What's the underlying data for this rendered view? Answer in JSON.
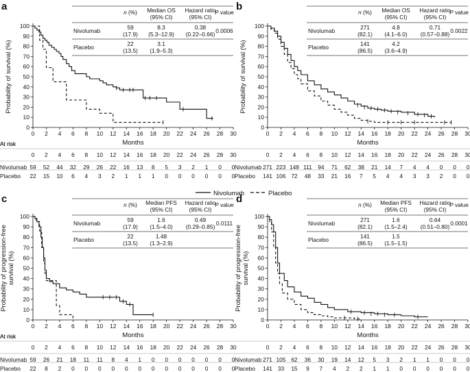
{
  "legend": {
    "nivolumab": "Nivolumab",
    "placebo": "Placebo",
    "position": "center"
  },
  "axis_labels": {
    "x": "Months",
    "y_os": "Probability of survival (%)",
    "y_pfs_line1": "Probability of progression-free",
    "y_pfs_line2": "survival (%)"
  },
  "risk_table_label": "At risk",
  "table_headers": {
    "n": "n (%)",
    "median_os": [
      "Median OS",
      "(95% CI)"
    ],
    "median_pfs": [
      "Median PFS",
      "(95% CI)"
    ],
    "hr": [
      "Hazard ratio",
      "(95% CI)"
    ],
    "p": "P value"
  },
  "colors": {
    "line": "#111111",
    "rule": "#444444"
  },
  "chart_data": [
    {
      "panel": "a",
      "type": "line",
      "step": true,
      "xlim": [
        0,
        30
      ],
      "ylim": [
        0,
        100
      ],
      "xticks": [
        0,
        2,
        4,
        6,
        8,
        10,
        12,
        14,
        16,
        18,
        20,
        22,
        24,
        26,
        28,
        30
      ],
      "yticks": [
        0,
        10,
        20,
        30,
        40,
        50,
        60,
        70,
        80,
        90,
        100
      ],
      "grid": false,
      "metric": "os",
      "series": [
        {
          "name": "Nivolumab",
          "style": "solid",
          "x": [
            0,
            0.3,
            0.6,
            0.9,
            1.2,
            1.5,
            1.8,
            2.1,
            2.4,
            2.8,
            3.2,
            3.5,
            3.9,
            4.2,
            4.5,
            5.0,
            5.4,
            5.8,
            6.3,
            7.0,
            8.0,
            8.5,
            9.0,
            10.0,
            10.5,
            11.0,
            12.0,
            12.5,
            13.0,
            16.0,
            16.5,
            18.0,
            20.0,
            22.0,
            26.0,
            27.0
          ],
          "y": [
            100,
            98,
            96,
            94,
            91,
            88,
            86,
            84,
            81,
            79,
            77,
            75,
            73,
            70,
            67,
            63,
            60,
            56,
            53,
            53,
            50,
            48,
            48,
            46,
            44,
            42,
            40,
            39,
            37,
            37,
            29,
            29,
            25,
            18,
            9,
            9
          ],
          "censor": [
            [
              12.5,
              39
            ],
            [
              13.5,
              37
            ],
            [
              14.5,
              37
            ],
            [
              15,
              37
            ],
            [
              16.8,
              29
            ],
            [
              17.5,
              29
            ],
            [
              18.5,
              29
            ],
            [
              22.5,
              18
            ],
            [
              26.8,
              9
            ]
          ]
        },
        {
          "name": "Placebo",
          "style": "dashed",
          "x": [
            0,
            1.0,
            1.5,
            2.0,
            3.0,
            4.0,
            5.0,
            6.5,
            8.0,
            10.0,
            12.0,
            19.5
          ],
          "y": [
            100,
            86,
            77,
            59,
            45,
            45,
            27,
            27,
            18,
            14,
            5,
            5
          ],
          "censor": [
            [
              19.5,
              5
            ]
          ]
        }
      ],
      "summary_table": [
        {
          "arm": "Nivolumab",
          "n": "59",
          "pct": "(17.9)",
          "median": "8.3",
          "median_ci": "(5.3–12.9)",
          "hr": "0.38",
          "hr_ci": "(0.22–0.66)",
          "p": "0.0006"
        },
        {
          "arm": "Placebo",
          "n": "22",
          "pct": "(13.5)",
          "median": "3.1",
          "median_ci": "(1.9–5.3)",
          "hr": "",
          "hr_ci": "",
          "p": ""
        }
      ],
      "at_risk": {
        "times": [
          0,
          2,
          4,
          6,
          8,
          10,
          12,
          14,
          16,
          18,
          20,
          22,
          24,
          26,
          28,
          30
        ],
        "Nivolumab": [
          59,
          52,
          44,
          32,
          29,
          26,
          22,
          16,
          13,
          8,
          5,
          3,
          2,
          1,
          0,
          0
        ],
        "Placebo": [
          22,
          15,
          10,
          6,
          4,
          3,
          2,
          1,
          1,
          1,
          0,
          0,
          0,
          0,
          0,
          0
        ]
      }
    },
    {
      "panel": "b",
      "type": "line",
      "step": true,
      "xlim": [
        0,
        30
      ],
      "ylim": [
        0,
        100
      ],
      "xticks": [
        0,
        2,
        4,
        6,
        8,
        10,
        12,
        14,
        16,
        18,
        20,
        22,
        24,
        26,
        28,
        30
      ],
      "yticks": [
        0,
        10,
        20,
        30,
        40,
        50,
        60,
        70,
        80,
        90,
        100
      ],
      "grid": false,
      "metric": "os",
      "series": [
        {
          "name": "Nivolumab",
          "style": "solid",
          "x": [
            0,
            0.5,
            1.0,
            1.5,
            2.0,
            2.5,
            3.0,
            3.5,
            4.0,
            4.5,
            5.0,
            6.0,
            7.0,
            8.0,
            9.0,
            10.0,
            11.0,
            12.0,
            13.0,
            14.0,
            15.0,
            16.0,
            17.0,
            18.0,
            20.0,
            22.0,
            24.0,
            25.0
          ],
          "y": [
            100,
            98,
            95,
            90,
            84,
            78,
            72,
            66,
            60,
            56,
            52,
            46,
            42,
            38,
            35,
            32,
            29,
            26,
            23,
            21,
            19,
            18,
            17,
            16,
            15,
            13,
            11,
            10
          ],
          "censor": [
            [
              13.5,
              22
            ],
            [
              14.5,
              20
            ],
            [
              15.5,
              19
            ],
            [
              16.5,
              18
            ],
            [
              17.5,
              17
            ],
            [
              18.5,
              16
            ],
            [
              19.5,
              15
            ],
            [
              21,
              14
            ],
            [
              22.5,
              13
            ],
            [
              23.5,
              12
            ],
            [
              24.5,
              11
            ]
          ]
        },
        {
          "name": "Placebo",
          "style": "dashed",
          "x": [
            0,
            0.5,
            1.0,
            1.5,
            2.0,
            2.5,
            3.0,
            3.5,
            4.0,
            4.5,
            5.0,
            6.0,
            7.0,
            8.0,
            9.0,
            10.0,
            11.0,
            12.0,
            13.0,
            14.0,
            15.0,
            16.0,
            17.0,
            18.0,
            27.5
          ],
          "y": [
            100,
            97,
            93,
            87,
            80,
            72,
            64,
            58,
            52,
            48,
            43,
            36,
            31,
            26,
            22,
            18,
            15,
            12,
            9,
            7,
            6,
            5,
            5,
            5,
            5
          ],
          "censor": [
            [
              15,
              6
            ],
            [
              18,
              5
            ],
            [
              20,
              5
            ],
            [
              22,
              5
            ],
            [
              26.5,
              5
            ],
            [
              27.5,
              5
            ]
          ]
        }
      ],
      "summary_table": [
        {
          "arm": "Nivolumab",
          "n": "271",
          "pct": "(82.1)",
          "median": "4.8",
          "median_ci": "(4.1–6.0)",
          "hr": "0.71",
          "hr_ci": "(0.57–0.88)",
          "p": "0.0022"
        },
        {
          "arm": "Placebo",
          "n": "141",
          "pct": "(86.5)",
          "median": "4.2",
          "median_ci": "(3.6–4.9)",
          "hr": "",
          "hr_ci": "",
          "p": ""
        }
      ],
      "at_risk": {
        "times": [
          0,
          2,
          4,
          6,
          8,
          10,
          12,
          14,
          16,
          18,
          20,
          22,
          24,
          26,
          28,
          30
        ],
        "Nivolumab": [
          271,
          223,
          148,
          111,
          94,
          71,
          62,
          38,
          21,
          14,
          7,
          4,
          4,
          0,
          0,
          0
        ],
        "Placebo": [
          141,
          106,
          72,
          48,
          33,
          21,
          16,
          7,
          5,
          4,
          4,
          3,
          3,
          2,
          0,
          0
        ]
      }
    },
    {
      "panel": "c",
      "type": "line",
      "step": true,
      "xlim": [
        0,
        30
      ],
      "ylim": [
        0,
        100
      ],
      "xticks": [
        0,
        2,
        4,
        6,
        8,
        10,
        12,
        14,
        16,
        18,
        20,
        22,
        24,
        26,
        28,
        30
      ],
      "yticks": [
        0,
        10,
        20,
        30,
        40,
        50,
        60,
        70,
        80,
        90,
        100
      ],
      "grid": false,
      "metric": "pfs",
      "series": [
        {
          "name": "Nivolumab",
          "style": "solid",
          "x": [
            0,
            0.3,
            0.6,
            0.9,
            1.2,
            1.4,
            1.6,
            1.8,
            2.0,
            2.5,
            3.0,
            4.0,
            5.0,
            6.0,
            7.0,
            8.0,
            10.0,
            12.0,
            13.0,
            14.0,
            15.0,
            18.0
          ],
          "y": [
            100,
            98,
            95,
            90,
            80,
            70,
            60,
            48,
            40,
            37,
            35,
            31,
            29,
            27,
            25,
            22,
            22,
            22,
            18,
            15,
            5,
            5
          ],
          "censor": [
            [
              10.5,
              22
            ],
            [
              11.5,
              22
            ],
            [
              12.5,
              22
            ],
            [
              13.5,
              18
            ],
            [
              14.5,
              15
            ],
            [
              18,
              5
            ]
          ]
        },
        {
          "name": "Placebo",
          "style": "dashed",
          "x": [
            0,
            0.5,
            1.0,
            1.3,
            1.6,
            1.8,
            2.0,
            3.0,
            3.5,
            4.0,
            5.0,
            6.0
          ],
          "y": [
            100,
            95,
            86,
            70,
            55,
            45,
            38,
            38,
            14,
            5,
            5,
            0
          ],
          "censor": []
        }
      ],
      "summary_table": [
        {
          "arm": "Nivolumab",
          "n": "59",
          "pct": "(17.9)",
          "median": "1.6",
          "median_ci": "(1.5–4.0)",
          "hr": "0.49",
          "hr_ci": "(0.29–0.85)",
          "p": "0.0111"
        },
        {
          "arm": "Placebo",
          "n": "22",
          "pct": "(13.5)",
          "median": "1.48",
          "median_ci": "(1.3–2.9)",
          "hr": "",
          "hr_ci": "",
          "p": ""
        }
      ],
      "at_risk": {
        "times": [
          0,
          2,
          4,
          6,
          8,
          10,
          12,
          14,
          16,
          18,
          20,
          22,
          24,
          26,
          28,
          30
        ],
        "Nivolumab": [
          59,
          26,
          21,
          18,
          11,
          11,
          8,
          4,
          1,
          0,
          0,
          0,
          0,
          0,
          0,
          0
        ],
        "Placebo": [
          22,
          8,
          2,
          0,
          0,
          0,
          0,
          0,
          0,
          0,
          0,
          0,
          0,
          0,
          0,
          0
        ]
      }
    },
    {
      "panel": "d",
      "type": "line",
      "step": true,
      "xlim": [
        0,
        30
      ],
      "ylim": [
        0,
        100
      ],
      "xticks": [
        0,
        2,
        4,
        6,
        8,
        10,
        12,
        14,
        16,
        18,
        20,
        22,
        24,
        26,
        28,
        30
      ],
      "yticks": [
        0,
        10,
        20,
        30,
        40,
        50,
        60,
        70,
        80,
        90,
        100
      ],
      "grid": false,
      "metric": "pfs",
      "series": [
        {
          "name": "Nivolumab",
          "style": "solid",
          "x": [
            0,
            0.3,
            0.6,
            0.9,
            1.2,
            1.5,
            1.8,
            2.5,
            3.0,
            4.0,
            5.0,
            6.0,
            7.0,
            8.0,
            9.0,
            10.0,
            12.0,
            14.0,
            16.0,
            18.0,
            20.0,
            22.0,
            24.0
          ],
          "y": [
            100,
            97,
            92,
            85,
            70,
            55,
            45,
            38,
            32,
            27,
            23,
            21,
            17,
            15,
            12,
            10,
            8,
            7,
            6,
            5,
            4,
            3,
            3
          ],
          "censor": [
            [
              12.5,
              8
            ],
            [
              14.5,
              7
            ],
            [
              15.5,
              6
            ],
            [
              16.5,
              6
            ],
            [
              17.5,
              5
            ],
            [
              19,
              5
            ],
            [
              22.5,
              3
            ]
          ]
        },
        {
          "name": "Placebo",
          "style": "dashed",
          "x": [
            0,
            0.3,
            0.6,
            0.9,
            1.2,
            1.5,
            1.8,
            2.2,
            3.0,
            4.0,
            5.0,
            6.0,
            7.0,
            8.0,
            9.0,
            10.0,
            12.0,
            13.0,
            14.0
          ],
          "y": [
            100,
            95,
            85,
            70,
            55,
            45,
            35,
            26,
            20,
            15,
            10,
            7,
            5,
            4,
            3,
            2,
            2,
            1,
            1
          ],
          "censor": [
            [
              11.5,
              2
            ],
            [
              13.5,
              1
            ]
          ]
        }
      ],
      "summary_table": [
        {
          "arm": "Nivolumab",
          "n": "271",
          "pct": "(82.1)",
          "median": "1.6",
          "median_ci": "(1.5–2.4)",
          "hr": "0.64",
          "hr_ci": "(0.51–0.80)",
          "p": "0.0001"
        },
        {
          "arm": "Placebo",
          "n": "141",
          "pct": "(86.5)",
          "median": "1.5",
          "median_ci": "(1.5–1.5)",
          "hr": "",
          "hr_ci": "",
          "p": ""
        }
      ],
      "at_risk": {
        "times": [
          0,
          2,
          4,
          6,
          8,
          10,
          12,
          14,
          16,
          18,
          20,
          22,
          24,
          26,
          28,
          30
        ],
        "Nivolumab": [
          271,
          105,
          62,
          36,
          30,
          19,
          14,
          12,
          5,
          3,
          2,
          1,
          1,
          0,
          0,
          0
        ],
        "Placebo": [
          141,
          33,
          15,
          9,
          7,
          4,
          2,
          2,
          1,
          1,
          0,
          0,
          0,
          0,
          0,
          0
        ]
      }
    }
  ]
}
